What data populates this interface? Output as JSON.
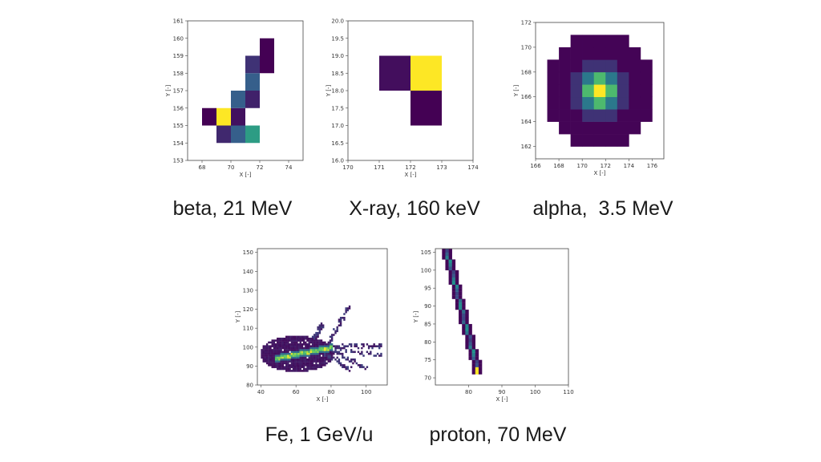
{
  "colors": {
    "low": "#440154",
    "mid": "#31688e",
    "teal": "#21918c",
    "green": "#35b779",
    "high": "#fde725"
  },
  "chart_data": [
    {
      "id": "beta",
      "type": "heatmap",
      "caption": "beta, 21 MeV",
      "xlabel": "X [-]",
      "ylabel": "Y [-]",
      "xlim": [
        67,
        75
      ],
      "ylim": [
        153,
        161
      ],
      "xticks": [
        68,
        70,
        72,
        74
      ],
      "yticks": [
        153,
        154,
        155,
        156,
        157,
        158,
        159,
        160,
        161
      ],
      "cells": [
        {
          "x": 68,
          "y": 155,
          "v": 0.0
        },
        {
          "x": 69,
          "y": 155,
          "v": 1.0
        },
        {
          "x": 70,
          "y": 155,
          "v": 0.05
        },
        {
          "x": 69,
          "y": 154,
          "v": 0.12
        },
        {
          "x": 70,
          "y": 154,
          "v": 0.3
        },
        {
          "x": 71,
          "y": 154,
          "v": 0.55
        },
        {
          "x": 70,
          "y": 156,
          "v": 0.3
        },
        {
          "x": 71,
          "y": 156,
          "v": 0.1
        },
        {
          "x": 71,
          "y": 157,
          "v": 0.3
        },
        {
          "x": 71,
          "y": 158,
          "v": 0.15
        },
        {
          "x": 72,
          "y": 158,
          "v": 0.0
        },
        {
          "x": 72,
          "y": 159,
          "v": 0.0
        }
      ]
    },
    {
      "id": "xray",
      "type": "heatmap",
      "caption": "X-ray, 160 keV",
      "xlabel": "X [-]",
      "ylabel": "Y [-]",
      "xlim": [
        170,
        174
      ],
      "ylim": [
        16,
        20
      ],
      "xticks": [
        170,
        171,
        172,
        173,
        174
      ],
      "yticks": [
        16.0,
        16.5,
        17.0,
        17.5,
        18.0,
        18.5,
        19.0,
        19.5,
        20.0
      ],
      "cells": [
        {
          "x": 171,
          "y": 18,
          "v": 0.04
        },
        {
          "x": 172,
          "y": 18,
          "v": 1.0
        },
        {
          "x": 172,
          "y": 17,
          "v": 0.0
        }
      ]
    },
    {
      "id": "alpha",
      "type": "heatmap",
      "caption": "alpha,  3.5 MeV",
      "xlabel": "X [-]",
      "ylabel": "Y [-]",
      "xlim": [
        166,
        177
      ],
      "ylim": [
        161,
        172
      ],
      "xticks": [
        166,
        168,
        170,
        172,
        174,
        176
      ],
      "yticks": [
        162,
        164,
        166,
        168,
        170,
        172
      ],
      "center": [
        171.5,
        166.5
      ],
      "radius": 4.6
    },
    {
      "id": "fe",
      "type": "heatmap",
      "caption": "Fe, 1 GeV/u",
      "xlabel": "X [-]",
      "ylabel": "Y [-]",
      "xlim": [
        38,
        112
      ],
      "ylim": [
        80,
        152
      ],
      "xticks": [
        40,
        60,
        80,
        100
      ],
      "yticks": [
        80,
        90,
        100,
        110,
        120,
        130,
        140,
        150
      ]
    },
    {
      "id": "proton",
      "type": "heatmap",
      "caption": "proton, 70 MeV",
      "xlabel": "X [-]",
      "ylabel": "Y [-]",
      "xlim": [
        70,
        110
      ],
      "ylim": [
        68,
        106
      ],
      "xticks": [
        80,
        90,
        100,
        110
      ],
      "yticks": [
        70,
        75,
        80,
        85,
        90,
        95,
        100,
        105
      ],
      "line_start": [
        73.5,
        104.5
      ],
      "line_end": [
        83,
        70.5
      ]
    }
  ]
}
